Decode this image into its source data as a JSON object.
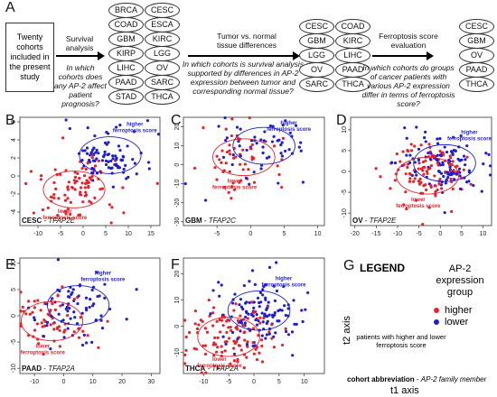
{
  "panel_letters": {
    "A": "A",
    "B": "B",
    "C": "C",
    "D": "D",
    "E": "E",
    "F": "F",
    "G": "G"
  },
  "panel_a": {
    "start_box": "Twenty cohorts included in the present study",
    "steps": [
      {
        "title": "Survival analysis",
        "question": "In which cohorts does any AP-2 affect patient prognosis?"
      },
      {
        "title": "Tumor vs. normal tissue differences",
        "question": "In which cohorts is survival analysis supported by differences in AP-2 expression between tumor and corresponding normal tissue?"
      },
      {
        "title": "Ferroptosis score evaluation",
        "question": "In which cohorts do groups of cancer patients with various AP-2 expression differ in terms of ferroptosis score?"
      }
    ],
    "group1": [
      "BRCA",
      "CESC",
      "COAD",
      "ESCA",
      "GBM",
      "KIRC",
      "KIRP",
      "LGG",
      "LIHC",
      "OV",
      "PAAD",
      "SARC",
      "STAD",
      "THCA"
    ],
    "group2": [
      "CESC",
      "COAD",
      "GBM",
      "KIRC",
      "LGG",
      "LIHC",
      "OV",
      "PAAD",
      "SARC",
      "THCA"
    ],
    "group3": [
      "CESC",
      "GBM",
      "OV",
      "PAAD",
      "THCA"
    ]
  },
  "scatter_panels": [
    {
      "id": "B",
      "cohort": "CESC",
      "gene": "TFAP2E",
      "xticks": [
        -10,
        -5,
        0,
        5,
        10,
        15
      ],
      "yticks": [
        6,
        4,
        2,
        0,
        -2,
        -4
      ],
      "xlim": [
        -14,
        17
      ],
      "ylim": [
        -5.5,
        6.5
      ],
      "higher_label": "higher ferroptosis score",
      "lower_label": "lower ferroptosis score",
      "red_center": [
        -2,
        -1.5
      ],
      "blue_center": [
        6,
        2.3
      ]
    },
    {
      "id": "C",
      "cohort": "GBM",
      "gene": "TFAP2C",
      "xticks": [
        -5,
        0,
        5,
        10
      ],
      "yticks": [
        20,
        10,
        0,
        -10,
        -20,
        -30
      ],
      "xlim": [
        -10,
        11
      ],
      "ylim": [
        -32,
        25
      ],
      "higher_label": "higher ferroptosis score",
      "lower_label": "lower ferroptosis score",
      "red_center": [
        -1,
        4
      ],
      "blue_center": [
        2,
        10
      ]
    },
    {
      "id": "D",
      "cohort": "OV",
      "gene": "TFAP2E",
      "xticks": [
        -20,
        -15,
        -10,
        -5,
        0,
        5,
        10
      ],
      "yticks": [
        10,
        5,
        0,
        -5,
        -10
      ],
      "xlim": [
        -21,
        12
      ],
      "ylim": [
        -13,
        13
      ],
      "higher_label": "higher ferroptosis score",
      "lower_label": "lower ferroptosis score",
      "red_center": [
        -3,
        -1
      ],
      "blue_center": [
        1,
        2
      ]
    },
    {
      "id": "E",
      "cohort": "PAAD",
      "gene": "TFAP2A",
      "xticks": [
        -10,
        0,
        10,
        20,
        30
      ],
      "yticks": [
        10,
        5,
        0,
        -5,
        -10
      ],
      "xlim": [
        -15,
        33
      ],
      "ylim": [
        -11,
        11
      ],
      "higher_label": "higher ferroptosis score",
      "lower_label": "lower ferroptosis score",
      "red_center": [
        -4,
        -1
      ],
      "blue_center": [
        5,
        2
      ]
    },
    {
      "id": "F",
      "cohort": "THCA",
      "gene": "TFAP2A",
      "xticks": [
        -10,
        -5,
        0,
        5,
        10
      ],
      "yticks": [
        20,
        10,
        0,
        -10
      ],
      "xlim": [
        -14,
        14
      ],
      "ylim": [
        -18,
        26
      ],
      "higher_label": "higher ferroptosis score",
      "lower_label": "lower ferroptosis score",
      "red_center": [
        -5,
        -4
      ],
      "blue_center": [
        1,
        6
      ]
    }
  ],
  "legend": {
    "title": "LEGEND",
    "group_title": "AP-2 expression group",
    "higher": "higher",
    "lower": "lower",
    "ellipse_desc": "patients with higher and lower ferroptosis score",
    "cohort_abbr": "cohort abbreviation",
    "family_member": "AP-2 family member",
    "x_axis": "t1 axis",
    "y_axis": "t2 axis"
  },
  "colors": {
    "red": "#e8212b",
    "blue": "#1f1fd0"
  }
}
